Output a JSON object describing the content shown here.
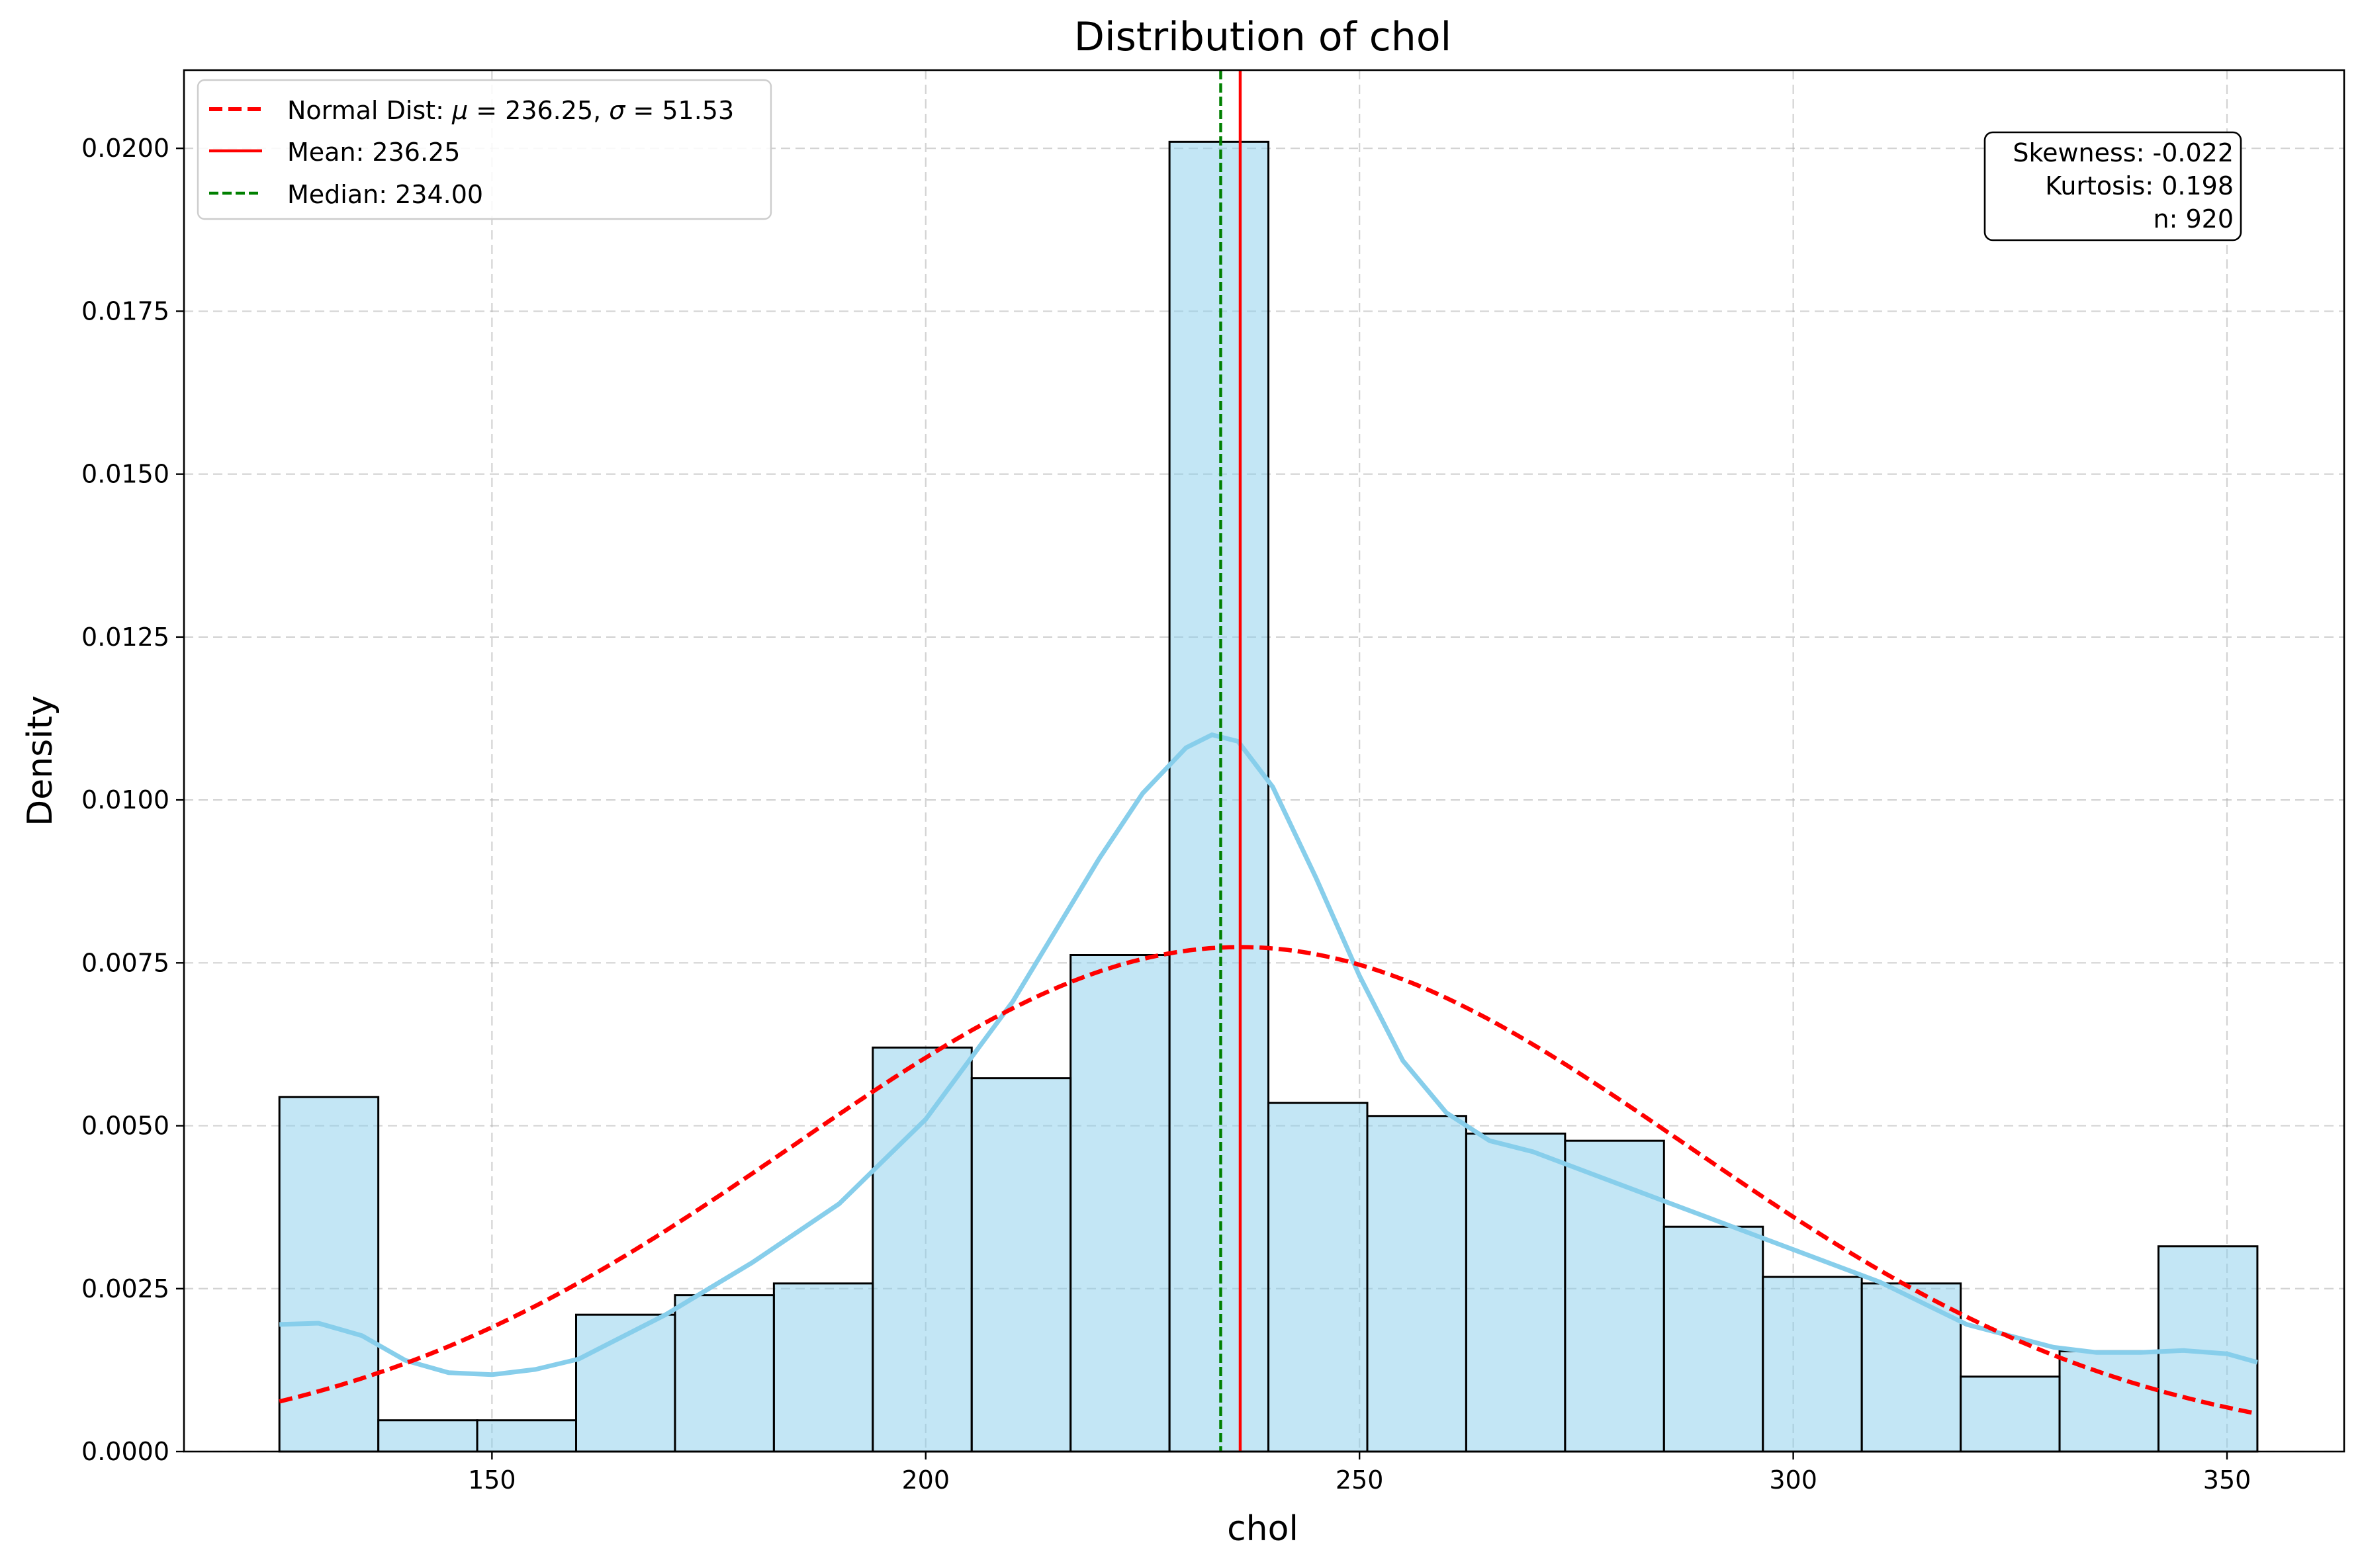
{
  "chart_data": {
    "type": "bar",
    "title": "Distribution of chol",
    "xlabel": "chol",
    "ylabel": "Density",
    "xlim": [
      114.5,
      363.5
    ],
    "ylim": [
      0,
      0.0212
    ],
    "x_ticks": [
      150,
      200,
      250,
      300,
      350
    ],
    "y_ticks": [
      0.0,
      0.0025,
      0.005,
      0.0075,
      0.01,
      0.0125,
      0.015,
      0.0175,
      0.02
    ],
    "y_tick_labels": [
      "0.0000",
      "0.0025",
      "0.0050",
      "0.0075",
      "0.0100",
      "0.0125",
      "0.0150",
      "0.0175",
      "0.0200"
    ],
    "grid": true,
    "legend_position": "top-left",
    "histogram": {
      "bin_edges": [
        125.5,
        136.9,
        148.3,
        159.7,
        171.1,
        182.5,
        193.9,
        205.3,
        216.7,
        228.1,
        239.5,
        250.9,
        262.3,
        273.7,
        285.1,
        296.5,
        307.9,
        319.3,
        330.7,
        342.1,
        353.5
      ],
      "density": [
        0.00544,
        0.00048,
        0.00048,
        0.0021,
        0.0024,
        0.00258,
        0.0062,
        0.00573,
        0.00762,
        0.0201,
        0.00535,
        0.00515,
        0.00488,
        0.00477,
        0.00345,
        0.00268,
        0.00258,
        0.00115,
        0.00154,
        0.00315
      ],
      "fill": "#87ceeb",
      "edge": "#000000"
    },
    "kde": {
      "color": "#87ceeb",
      "x": [
        125.5,
        130,
        135,
        140,
        145,
        150,
        155,
        160,
        170,
        180,
        190,
        200,
        210,
        220,
        225,
        230,
        233,
        236,
        240,
        245,
        250,
        255,
        260,
        265,
        270,
        280,
        290,
        300,
        310,
        320,
        330,
        335,
        340,
        345,
        350,
        353.5
      ],
      "y": [
        0.00195,
        0.00197,
        0.00178,
        0.0014,
        0.00121,
        0.00118,
        0.00126,
        0.00142,
        0.0021,
        0.0029,
        0.0038,
        0.0051,
        0.0069,
        0.0091,
        0.0101,
        0.0108,
        0.011,
        0.0109,
        0.0102,
        0.0088,
        0.0073,
        0.006,
        0.0052,
        0.00477,
        0.0046,
        0.0041,
        0.0036,
        0.0031,
        0.0026,
        0.00195,
        0.0016,
        0.00152,
        0.00152,
        0.00155,
        0.0015,
        0.00137
      ]
    },
    "normal": {
      "mu": 236.25,
      "sigma": 51.53,
      "x_range": [
        125.5,
        353.5
      ],
      "color": "#ff0000"
    },
    "mean": {
      "value": 236.25,
      "color": "#ff0000"
    },
    "median": {
      "value": 234.0,
      "color": "#008000"
    },
    "legend": [
      {
        "label_prefix": "Normal Dist: ",
        "mu_symbol": "μ",
        "mu_text": " = 236.25, ",
        "sigma_symbol": "σ",
        "sigma_text": " = 51.53",
        "style": "dashed",
        "color": "#ff0000"
      },
      {
        "label": "Mean: 236.25",
        "style": "solid",
        "color": "#ff0000"
      },
      {
        "label": "Median: 234.00",
        "style": "dashed",
        "color": "#008000"
      }
    ],
    "stats_box": [
      "Skewness: -0.022",
      "Kurtosis: 0.198",
      "n: 920"
    ]
  }
}
